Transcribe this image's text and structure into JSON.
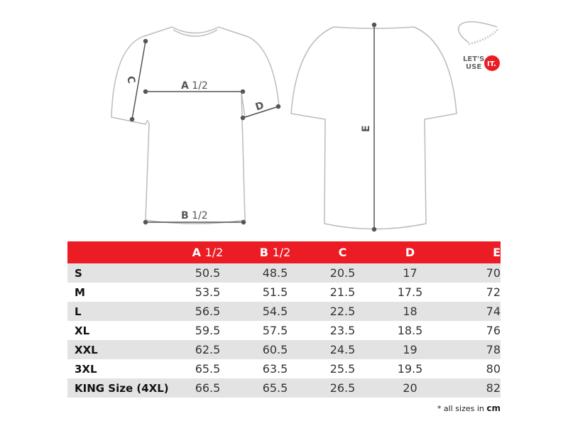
{
  "diagram": {
    "labels": {
      "a": "A",
      "a_frac": "1/2",
      "b": "B",
      "b_frac": "1/2",
      "c": "C",
      "d": "D",
      "e": "E"
    }
  },
  "logo": {
    "text": "LET'S USE IT.",
    "line1": "LET'S",
    "line2": "USE",
    "badge": "IT.",
    "accent": "#ec1c24"
  },
  "table": {
    "headers": [
      {
        "main": "",
        "frac": ""
      },
      {
        "main": "A",
        "frac": "1/2"
      },
      {
        "main": "B",
        "frac": "1/2"
      },
      {
        "main": "C",
        "frac": ""
      },
      {
        "main": "D",
        "frac": ""
      },
      {
        "main": "E",
        "frac": ""
      }
    ],
    "rows": [
      [
        "S",
        "50.5",
        "48.5",
        "20.5",
        "17",
        "70"
      ],
      [
        "M",
        "53.5",
        "51.5",
        "21.5",
        "17.5",
        "72"
      ],
      [
        "L",
        "56.5",
        "54.5",
        "22.5",
        "18",
        "74"
      ],
      [
        "XL",
        "59.5",
        "57.5",
        "23.5",
        "18.5",
        "76"
      ],
      [
        "XXL",
        "62.5",
        "60.5",
        "24.5",
        "19",
        "78"
      ],
      [
        "3XL",
        "65.5",
        "63.5",
        "25.5",
        "19.5",
        "80"
      ],
      [
        "KING Size (4XL)",
        "66.5",
        "65.5",
        "26.5",
        "20",
        "82"
      ]
    ],
    "header_color": "#ec1c24",
    "stripe_color": "#e3e3e3"
  },
  "note": {
    "text": "* all sizes in",
    "unit": "cm"
  }
}
